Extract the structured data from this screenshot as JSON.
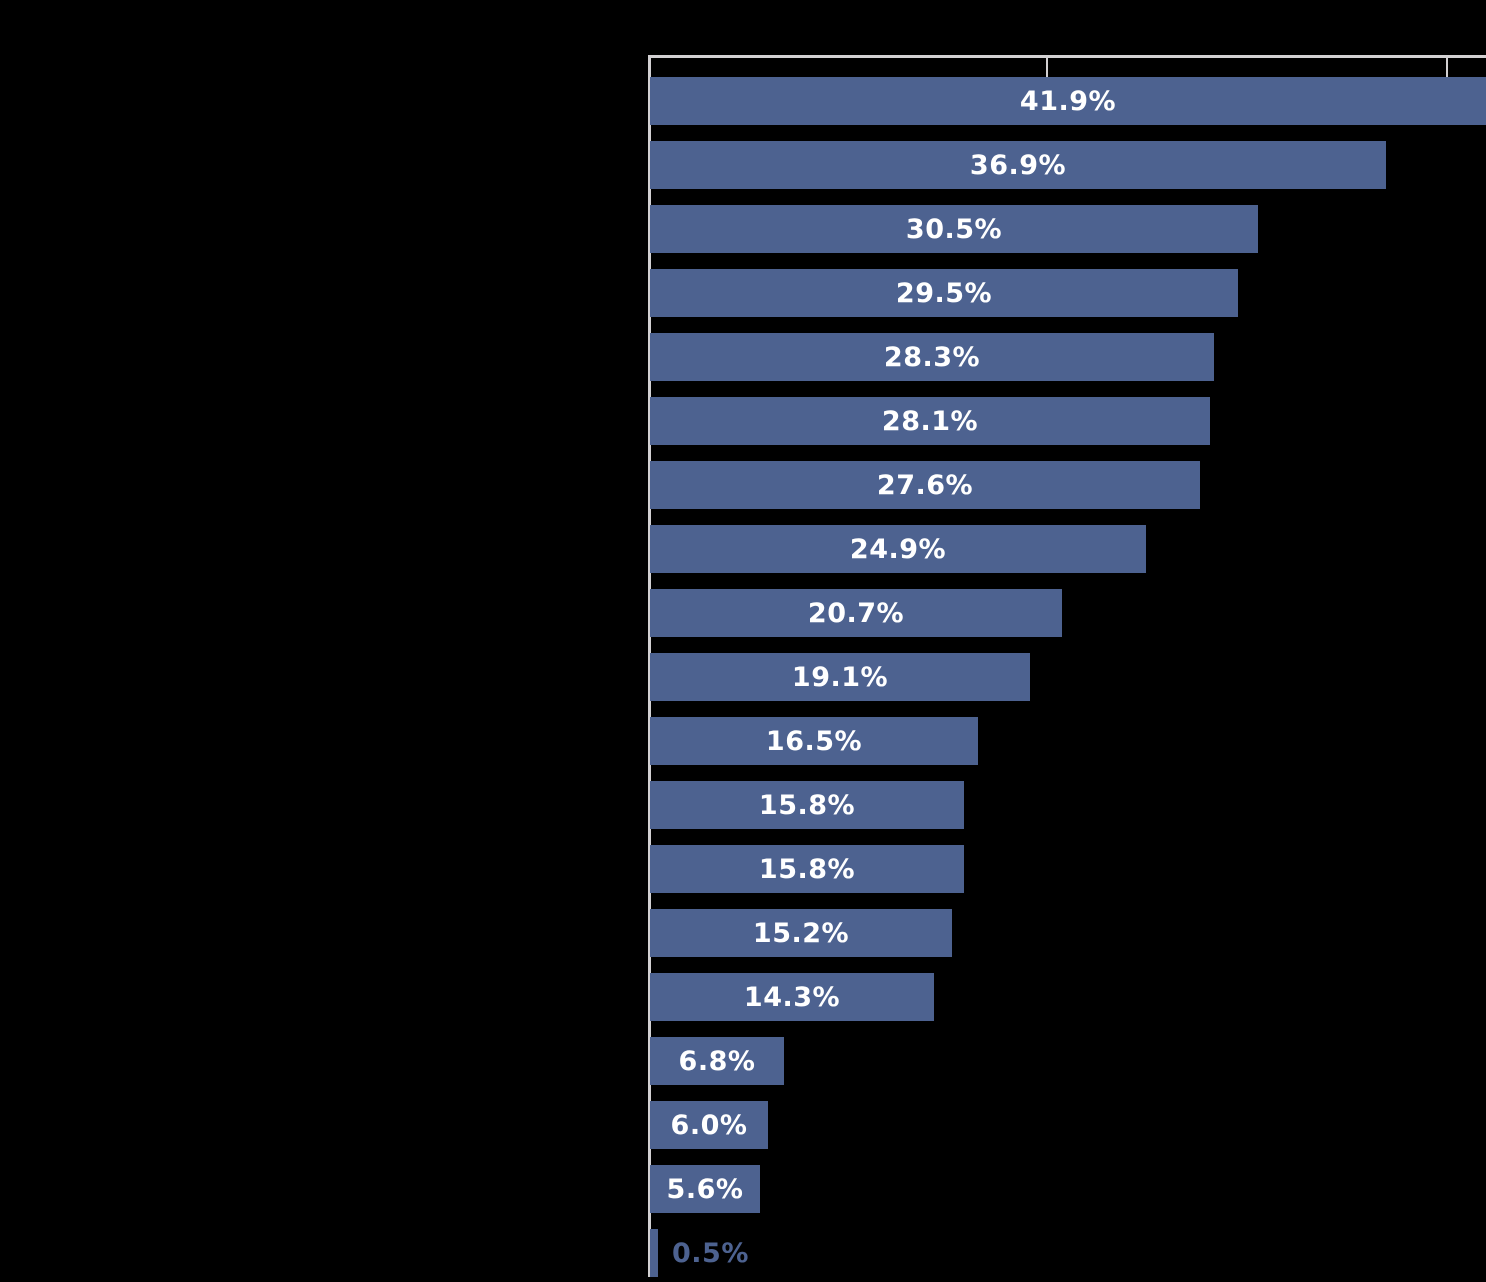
{
  "chart_data": {
    "type": "bar",
    "orientation": "horizontal",
    "title": "",
    "xlabel": "",
    "ylabel": "",
    "xlim": [
      0,
      41.9
    ],
    "x_ticks_pct": [
      20,
      40
    ],
    "tick_labels_visible": false,
    "category_labels_visible": false,
    "grid": false,
    "legend": false,
    "background_color": "#000000",
    "bar_color": "#4d6290",
    "axis_color": "#d2d0d2",
    "label_color_inside": "#ffffff",
    "label_color_outside": "#4d6290",
    "bars": [
      {
        "label": "41.9%",
        "value": 41.9,
        "label_position": "inside"
      },
      {
        "label": "36.9%",
        "value": 36.9,
        "label_position": "inside"
      },
      {
        "label": "30.5%",
        "value": 30.5,
        "label_position": "inside"
      },
      {
        "label": "29.5%",
        "value": 29.5,
        "label_position": "inside"
      },
      {
        "label": "28.3%",
        "value": 28.3,
        "label_position": "inside"
      },
      {
        "label": "28.1%",
        "value": 28.1,
        "label_position": "inside"
      },
      {
        "label": "27.6%",
        "value": 27.6,
        "label_position": "inside"
      },
      {
        "label": "24.9%",
        "value": 24.9,
        "label_position": "inside"
      },
      {
        "label": "20.7%",
        "value": 20.7,
        "label_position": "inside"
      },
      {
        "label": "19.1%",
        "value": 19.1,
        "label_position": "inside"
      },
      {
        "label": "16.5%",
        "value": 16.5,
        "label_position": "inside"
      },
      {
        "label": "15.8%",
        "value": 15.8,
        "label_position": "inside"
      },
      {
        "label": "15.8%",
        "value": 15.8,
        "label_position": "inside"
      },
      {
        "label": "15.2%",
        "value": 15.2,
        "label_position": "inside"
      },
      {
        "label": "14.3%",
        "value": 14.3,
        "label_position": "inside"
      },
      {
        "label": "6.8%",
        "value": 6.8,
        "label_position": "inside"
      },
      {
        "label": "6.0%",
        "value": 6.0,
        "label_position": "inside"
      },
      {
        "label": "5.6%",
        "value": 5.6,
        "label_position": "inside"
      },
      {
        "label": "0.5%",
        "value": 0.5,
        "label_position": "outside"
      }
    ]
  }
}
